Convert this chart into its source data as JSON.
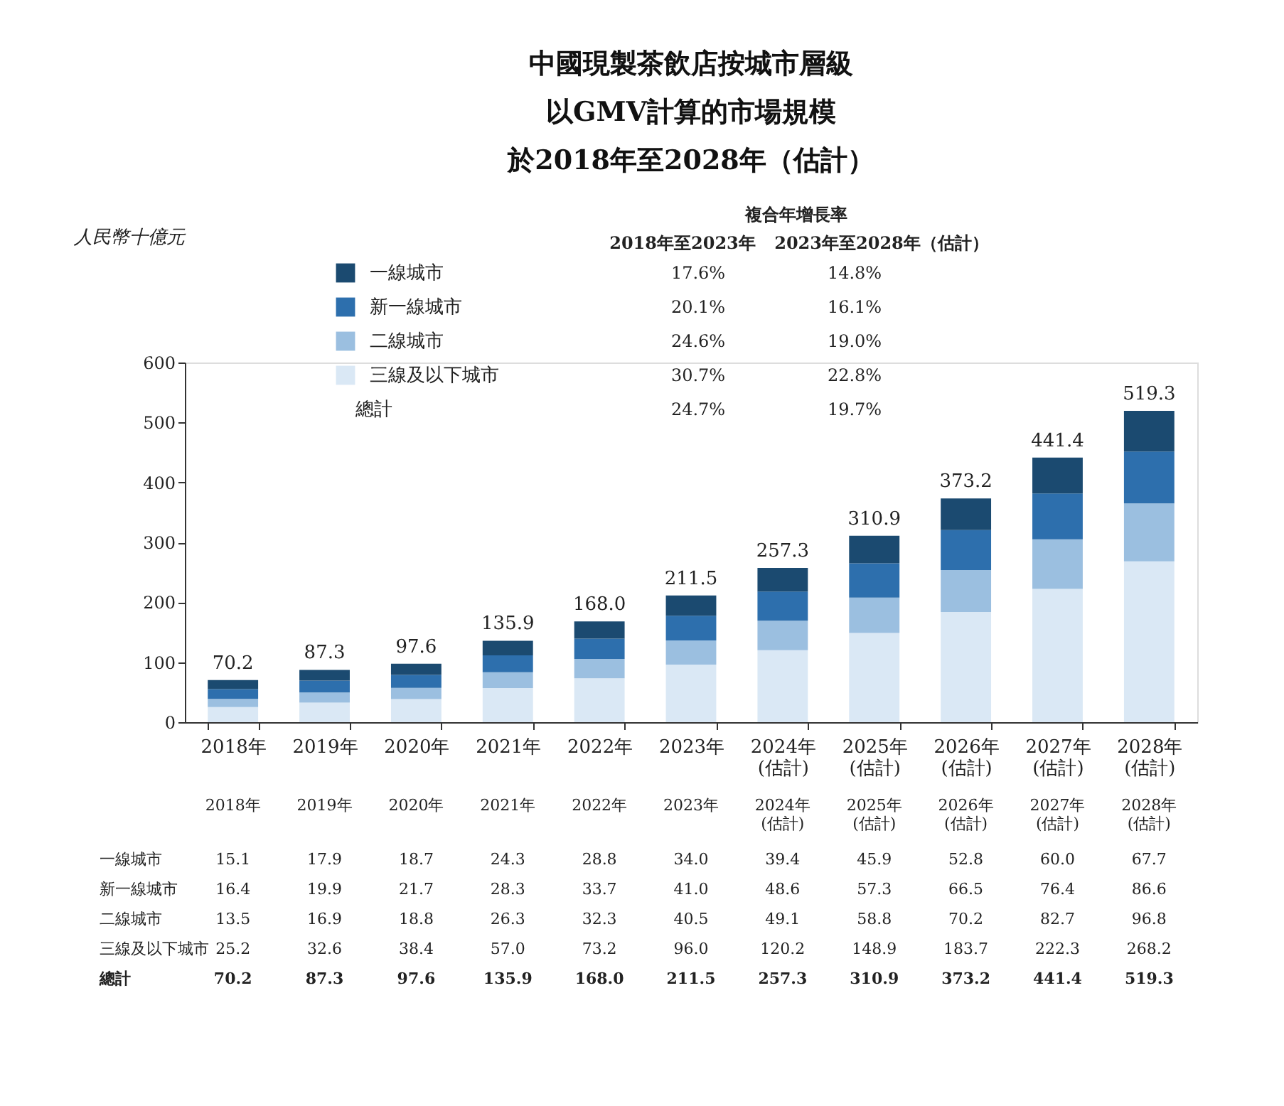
{
  "chart_data": {
    "type": "bar",
    "stacked": true,
    "title": [
      "中國現製茶飲店按城市層級",
      "以GMV計算的市場規模",
      "於2018年至2028年（估計）"
    ],
    "categories": [
      "2018年",
      "2019年",
      "2020年",
      "2021年",
      "2022年",
      "2023年",
      "2024年\n(估計)",
      "2025年\n(估計)",
      "2026年\n(估計)",
      "2027年\n(估計)",
      "2028年\n(估計)"
    ],
    "series": [
      {
        "name": "三線及以下城市",
        "color": "#dae8f5",
        "values": [
          25.2,
          32.6,
          38.4,
          57.0,
          73.2,
          96.0,
          120.2,
          148.9,
          183.7,
          222.3,
          268.2
        ],
        "value_labels": [
          "25.2",
          "32.6",
          "38.4",
          "57.0",
          "73.2",
          "96.0",
          "120.2",
          "148.9",
          "183.7",
          "222.3",
          "268.2"
        ]
      },
      {
        "name": "二線城市",
        "color": "#9bbfe0",
        "values": [
          13.5,
          16.9,
          18.8,
          26.3,
          32.3,
          40.5,
          49.1,
          58.8,
          70.2,
          82.7,
          96.8
        ],
        "value_labels": [
          "13.5",
          "16.9",
          "18.8",
          "26.3",
          "32.3",
          "40.5",
          "49.1",
          "58.8",
          "70.2",
          "82.7",
          "96.8"
        ]
      },
      {
        "name": "新一線城市",
        "color": "#2d6fad",
        "values": [
          16.4,
          19.9,
          21.7,
          28.3,
          33.7,
          41.0,
          48.6,
          57.3,
          66.5,
          76.4,
          86.6
        ],
        "value_labels": [
          "16.4",
          "19.9",
          "21.7",
          "28.3",
          "33.7",
          "41.0",
          "48.6",
          "57.3",
          "66.5",
          "76.4",
          "86.6"
        ]
      },
      {
        "name": "一線城市",
        "color": "#1b4a70",
        "values": [
          15.1,
          17.9,
          18.7,
          24.3,
          28.8,
          34.0,
          39.4,
          45.9,
          52.8,
          60.0,
          67.7
        ],
        "value_labels": [
          "15.1",
          "17.9",
          "18.7",
          "24.3",
          "28.8",
          "34.0",
          "39.4",
          "45.9",
          "52.8",
          "60.0",
          "67.7"
        ]
      }
    ],
    "totals": [
      "70.2",
      "87.3",
      "97.6",
      "135.9",
      "168.0",
      "211.5",
      "257.3",
      "310.9",
      "373.2",
      "441.4",
      "519.3"
    ],
    "ylim": [
      0,
      600
    ],
    "yticks": [
      0,
      100,
      200,
      300,
      400,
      500,
      600
    ],
    "grid": false,
    "legend": "top",
    "annotations": [
      "複合年增長率",
      "2018年至2023年",
      "2023年至2028年（估計）",
      "總計",
      "17.6%",
      "14.8%",
      "20.1%",
      "16.1%",
      "24.6%",
      "19.0%",
      "30.7%",
      "22.8%",
      "24.7%",
      "19.7%",
      "人民幣十億元"
    ]
  }
}
